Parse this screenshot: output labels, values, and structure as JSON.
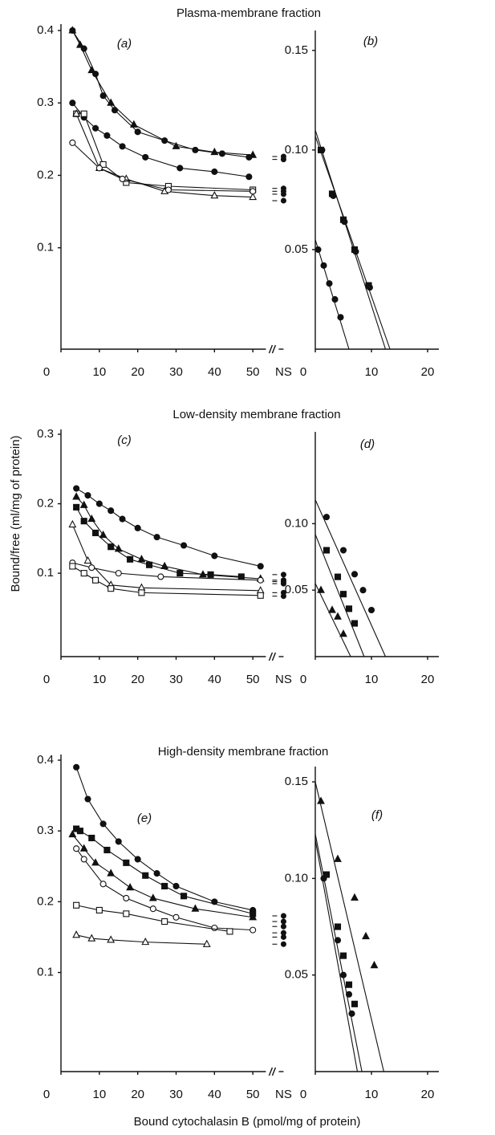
{
  "chart_data": [
    {
      "type": "line",
      "title": "Plasma-membrane fraction",
      "panel_label": "(a)",
      "xlim": [
        0,
        60
      ],
      "ylim": [
        -0.04,
        0.4
      ],
      "xticks": [
        0,
        10,
        20,
        30,
        40,
        50,
        {
          "value": 58,
          "label": "NS"
        }
      ],
      "yticks": [
        0.1,
        0.2,
        0.3,
        0.4
      ],
      "series": [
        {
          "marker": "circle",
          "filled": true,
          "color": "#111",
          "x": [
            3,
            6,
            9,
            11,
            14,
            20,
            27,
            35,
            42,
            49
          ],
          "values": [
            0.4,
            0.375,
            0.34,
            0.31,
            0.29,
            0.26,
            0.248,
            0.235,
            0.23,
            0.225
          ],
          "ns": 0.222
        },
        {
          "marker": "triangle",
          "filled": true,
          "color": "#111",
          "x": [
            3,
            5,
            8,
            13,
            19,
            30,
            40,
            50
          ],
          "values": [
            0.4,
            0.38,
            0.345,
            0.3,
            0.27,
            0.24,
            0.232,
            0.228
          ],
          "ns": 0.226
        },
        {
          "marker": "circle",
          "filled": true,
          "color": "#111",
          "x": [
            3,
            6,
            9,
            12,
            16,
            22,
            31,
            40,
            49
          ],
          "values": [
            0.3,
            0.28,
            0.265,
            0.255,
            0.24,
            0.225,
            0.21,
            0.205,
            0.198
          ],
          "ns": 0.182
        },
        {
          "marker": "square",
          "filled": false,
          "color": "#111",
          "x": [
            4,
            6,
            11,
            17,
            28,
            50
          ],
          "values": [
            0.285,
            0.285,
            0.215,
            0.19,
            0.185,
            0.18
          ],
          "ns": 0.178
        },
        {
          "marker": "triangle",
          "filled": false,
          "color": "#111",
          "x": [
            4,
            10,
            17,
            27,
            40,
            50
          ],
          "values": [
            0.285,
            0.21,
            0.195,
            0.178,
            0.172,
            0.17
          ],
          "ns": 0.165
        },
        {
          "marker": "circle",
          "filled": false,
          "color": "#111",
          "x": [
            3,
            10,
            16,
            28,
            50
          ],
          "values": [
            0.245,
            0.21,
            0.195,
            0.18,
            0.178
          ],
          "ns": 0.174
        }
      ]
    },
    {
      "type": "line",
      "panel_label": "(b)",
      "xlim": [
        0,
        22
      ],
      "ylim": [
        0,
        0.16
      ],
      "xticks": [
        0,
        10,
        20
      ],
      "yticks": [
        0.05,
        {
          "value": 0.1,
          "label": "0.10"
        },
        0.15
      ],
      "series": [
        {
          "marker": "square",
          "filled": true,
          "color": "#111",
          "x": [
            1,
            3,
            5,
            7,
            9.5
          ],
          "values": [
            0.1,
            0.078,
            0.065,
            0.05,
            0.032
          ],
          "fit": {
            "x": [
              0,
              12.5
            ],
            "values": [
              0.11,
              0
            ]
          }
        },
        {
          "marker": "circle",
          "filled": true,
          "color": "#111",
          "x": [
            1.2,
            3.2,
            5.2,
            7.2,
            9.7
          ],
          "values": [
            0.1,
            0.077,
            0.064,
            0.049,
            0.031
          ],
          "fit": {
            "x": [
              0,
              13.3
            ],
            "values": [
              0.107,
              0
            ]
          }
        },
        {
          "marker": "circle",
          "filled": true,
          "color": "#111",
          "x": [
            0.5,
            1.5,
            2.5,
            3.5,
            4.5
          ],
          "values": [
            0.05,
            0.042,
            0.033,
            0.025,
            0.016
          ],
          "fit": {
            "x": [
              0,
              6
            ],
            "values": [
              0.055,
              0
            ]
          }
        }
      ]
    },
    {
      "type": "line",
      "title": "Low-density membrane fraction",
      "panel_label": "(c)",
      "ylabel": "Bound/free (ml/mg of protein)",
      "xlim": [
        0,
        60
      ],
      "ylim": [
        -0.02,
        0.3
      ],
      "xticks": [
        0,
        10,
        20,
        30,
        40,
        50,
        {
          "value": 58,
          "label": "NS"
        }
      ],
      "yticks": [
        0.1,
        0.2,
        0.3
      ],
      "series": [
        {
          "marker": "circle",
          "filled": true,
          "color": "#111",
          "x": [
            4,
            7,
            10,
            13,
            16,
            20,
            25,
            32,
            40,
            52
          ],
          "values": [
            0.222,
            0.212,
            0.2,
            0.19,
            0.178,
            0.165,
            0.152,
            0.14,
            0.125,
            0.11
          ],
          "ns": 0.098
        },
        {
          "marker": "triangle",
          "filled": true,
          "color": "#111",
          "x": [
            4,
            6,
            8,
            11,
            15,
            21,
            27,
            37,
            52
          ],
          "values": [
            0.21,
            0.198,
            0.178,
            0.155,
            0.135,
            0.12,
            0.11,
            0.098,
            0.092
          ],
          "ns": 0.09
        },
        {
          "marker": "square",
          "filled": true,
          "color": "#111",
          "x": [
            4,
            6,
            9,
            13,
            18,
            23,
            31,
            39,
            47
          ],
          "values": [
            0.195,
            0.175,
            0.158,
            0.138,
            0.12,
            0.112,
            0.1,
            0.098,
            0.095
          ],
          "ns": 0.088
        },
        {
          "marker": "triangle",
          "filled": false,
          "color": "#111",
          "x": [
            3,
            7,
            13,
            21,
            52
          ],
          "values": [
            0.17,
            0.118,
            0.083,
            0.079,
            0.075
          ],
          "ns": 0.072
        },
        {
          "marker": "circle",
          "filled": false,
          "color": "#111",
          "x": [
            3,
            8,
            15,
            26,
            52
          ],
          "values": [
            0.115,
            0.108,
            0.1,
            0.095,
            0.09
          ],
          "ns": 0.085
        },
        {
          "marker": "square",
          "filled": false,
          "color": "#111",
          "x": [
            3,
            6,
            9,
            13,
            21,
            52
          ],
          "values": [
            0.11,
            0.1,
            0.09,
            0.078,
            0.072,
            0.068
          ],
          "ns": 0.067
        }
      ]
    },
    {
      "type": "line",
      "panel_label": "(d)",
      "xlim": [
        0,
        22
      ],
      "ylim": [
        0,
        0.125
      ],
      "xticks": [
        0,
        10,
        20
      ],
      "yticks": [
        0.05,
        {
          "value": 0.1,
          "label": "0.10"
        }
      ],
      "series": [
        {
          "marker": "circle",
          "filled": true,
          "color": "#111",
          "x": [
            2,
            5,
            7,
            8.5,
            10
          ],
          "values": [
            0.105,
            0.08,
            0.062,
            0.05,
            0.035
          ],
          "fit": {
            "x": [
              0,
              12.5
            ],
            "values": [
              0.118,
              0
            ]
          }
        },
        {
          "marker": "square",
          "filled": true,
          "color": "#111",
          "x": [
            2,
            4,
            5,
            6,
            7
          ],
          "values": [
            0.08,
            0.06,
            0.047,
            0.036,
            0.025
          ],
          "fit": {
            "x": [
              0,
              8.7
            ],
            "values": [
              0.092,
              0
            ]
          }
        },
        {
          "marker": "triangle",
          "filled": true,
          "color": "#111",
          "x": [
            1,
            3,
            4,
            5
          ],
          "values": [
            0.05,
            0.035,
            0.03,
            0.017
          ],
          "fit": {
            "x": [
              0,
              6.3
            ],
            "values": [
              0.055,
              0
            ]
          }
        }
      ]
    },
    {
      "type": "line",
      "title": "High-density membrane fraction",
      "panel_label": "(e)",
      "xlabel": "Bound cytochalasin B (pmol/mg of protein)",
      "xlim": [
        0,
        60
      ],
      "ylim": [
        -0.04,
        0.4
      ],
      "xticks": [
        0,
        10,
        20,
        30,
        40,
        50,
        {
          "value": 58,
          "label": "NS"
        }
      ],
      "yticks": [
        0.1,
        0.2,
        0.3,
        0.4
      ],
      "series": [
        {
          "marker": "circle",
          "filled": true,
          "color": "#111",
          "x": [
            4,
            7,
            11,
            15,
            20,
            25,
            30,
            40,
            50
          ],
          "values": [
            0.39,
            0.345,
            0.31,
            0.285,
            0.26,
            0.24,
            0.222,
            0.2,
            0.188
          ],
          "ns": 0.18
        },
        {
          "marker": "square",
          "filled": true,
          "color": "#111",
          "x": [
            4,
            5,
            8,
            12,
            17,
            22,
            27,
            32,
            50
          ],
          "values": [
            0.303,
            0.3,
            0.29,
            0.273,
            0.255,
            0.237,
            0.222,
            0.208,
            0.183
          ],
          "ns": 0.172
        },
        {
          "marker": "triangle",
          "filled": true,
          "color": "#111",
          "x": [
            3,
            6,
            9,
            13,
            18,
            24,
            35,
            50
          ],
          "values": [
            0.295,
            0.275,
            0.255,
            0.24,
            0.22,
            0.205,
            0.19,
            0.178
          ],
          "ns": 0.165
        },
        {
          "marker": "circle",
          "filled": false,
          "color": "#111",
          "x": [
            4,
            6,
            11,
            17,
            24,
            30,
            40,
            50
          ],
          "values": [
            0.275,
            0.26,
            0.225,
            0.205,
            0.19,
            0.178,
            0.163,
            0.16
          ],
          "ns": 0.156
        },
        {
          "marker": "square",
          "filled": false,
          "color": "#111",
          "x": [
            4,
            10,
            17,
            27,
            44
          ],
          "values": [
            0.195,
            0.188,
            0.183,
            0.172,
            0.158
          ],
          "ns": 0.15
        },
        {
          "marker": "triangle",
          "filled": false,
          "color": "#111",
          "x": [
            4,
            8,
            13,
            22,
            38
          ],
          "values": [
            0.153,
            0.148,
            0.146,
            0.143,
            0.14
          ],
          "ns": 0.14
        }
      ]
    },
    {
      "type": "line",
      "panel_label": "(f)",
      "xlim": [
        0,
        22
      ],
      "ylim": [
        0,
        0.16
      ],
      "xticks": [
        0,
        10,
        20
      ],
      "yticks": [
        0.05,
        {
          "value": 0.1,
          "label": "0.10"
        },
        0.15
      ],
      "series": [
        {
          "marker": "triangle",
          "filled": true,
          "color": "#111",
          "x": [
            1,
            4,
            7,
            9,
            10.5
          ],
          "values": [
            0.14,
            0.11,
            0.09,
            0.07,
            0.055
          ],
          "fit": {
            "x": [
              0,
              12.2
            ],
            "values": [
              0.15,
              0
            ]
          }
        },
        {
          "marker": "square",
          "filled": true,
          "color": "#111",
          "x": [
            2,
            4,
            5,
            6,
            7
          ],
          "values": [
            0.102,
            0.075,
            0.06,
            0.045,
            0.035
          ],
          "fit": {
            "x": [
              0,
              8.3
            ],
            "values": [
              0.123,
              0
            ]
          }
        },
        {
          "marker": "circle",
          "filled": true,
          "color": "#111",
          "x": [
            1.5,
            4,
            5,
            6,
            6.5
          ],
          "values": [
            0.1,
            0.068,
            0.05,
            0.04,
            0.03
          ],
          "fit": {
            "x": [
              0,
              7.5
            ],
            "values": [
              0.12,
              0
            ]
          }
        }
      ]
    }
  ]
}
